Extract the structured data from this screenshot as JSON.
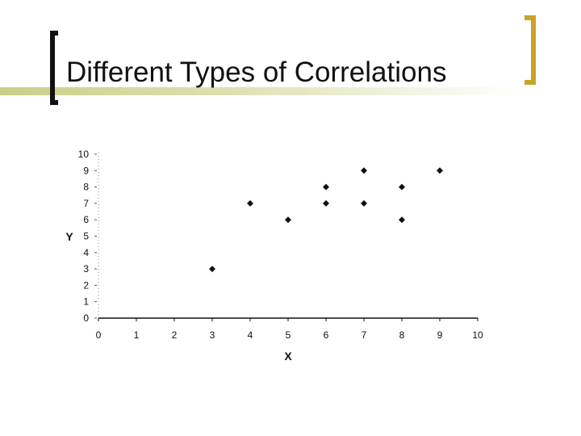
{
  "slide": {
    "title": "Different Types of Correlations"
  },
  "colors": {
    "bracket_left": "#111111",
    "bracket_right": "#c9a227",
    "title_band": "#c9cf86",
    "points": "#111111"
  },
  "chart_data": {
    "type": "scatter",
    "title": "",
    "xlabel": "X",
    "ylabel": "Y",
    "xlim": [
      0,
      10
    ],
    "ylim": [
      0,
      10
    ],
    "xticks": [
      0,
      1,
      2,
      3,
      4,
      5,
      6,
      7,
      8,
      9,
      10
    ],
    "yticks": [
      0,
      1,
      2,
      3,
      4,
      5,
      6,
      7,
      8,
      9,
      10
    ],
    "grid": false,
    "points": [
      {
        "x": 3,
        "y": 3
      },
      {
        "x": 4,
        "y": 7
      },
      {
        "x": 5,
        "y": 6
      },
      {
        "x": 6,
        "y": 7
      },
      {
        "x": 6,
        "y": 8
      },
      {
        "x": 7,
        "y": 7
      },
      {
        "x": 7,
        "y": 9
      },
      {
        "x": 8,
        "y": 6
      },
      {
        "x": 8,
        "y": 8
      },
      {
        "x": 9,
        "y": 9
      }
    ]
  }
}
